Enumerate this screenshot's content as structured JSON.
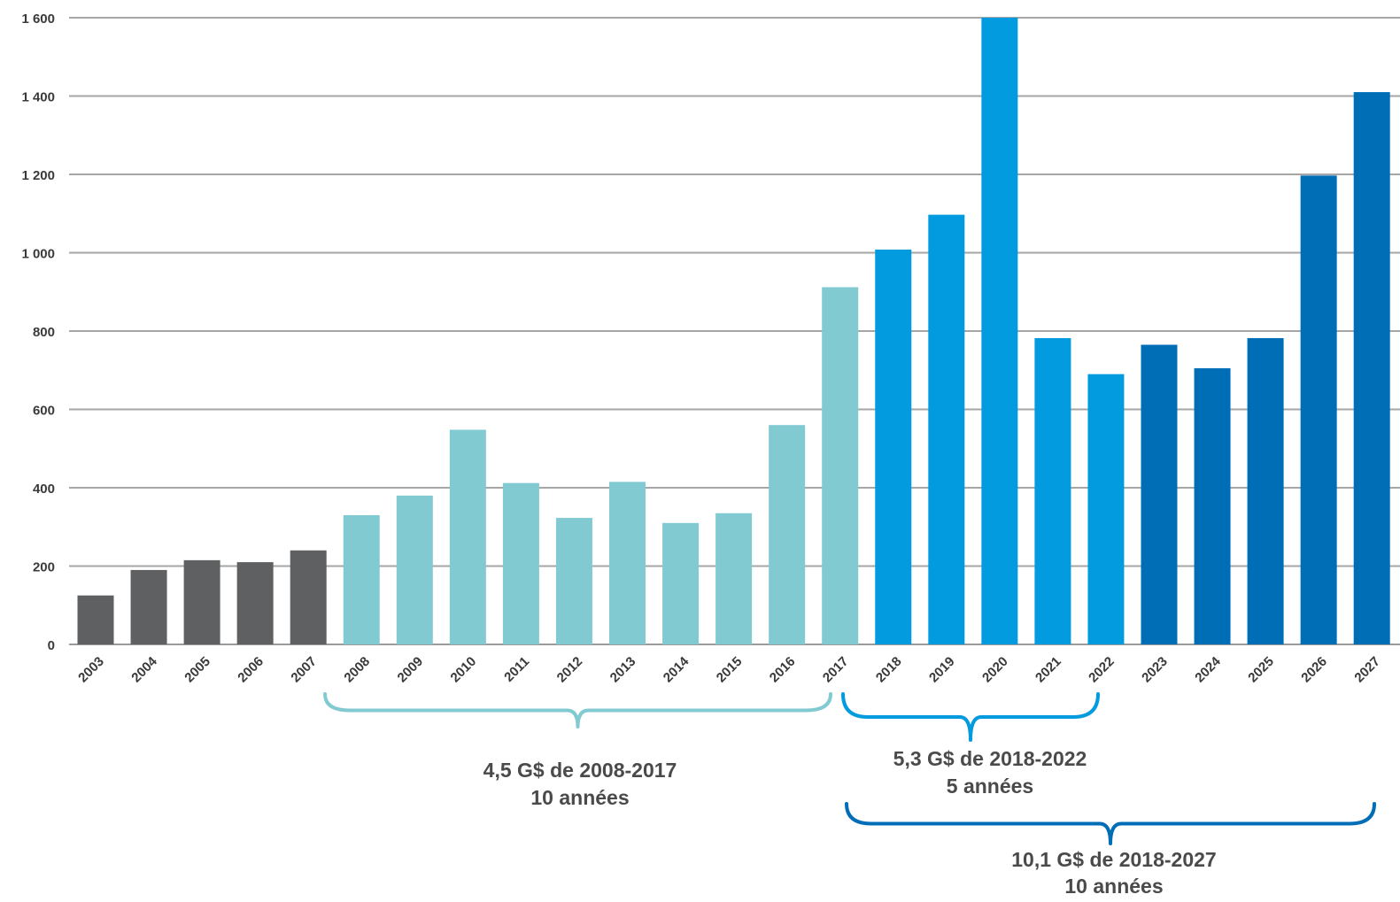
{
  "chart_data": {
    "type": "bar",
    "title": "",
    "xlabel": "",
    "ylabel": "",
    "ylim": [
      0,
      1600
    ],
    "yticks": [
      0,
      200,
      400,
      600,
      800,
      1000,
      1200,
      1400,
      1600
    ],
    "ytick_labels": [
      "0",
      "200",
      "400",
      "600",
      "800",
      "1 000",
      "1 200",
      "1 400",
      "1 600"
    ],
    "grid": true,
    "categories": [
      "2003",
      "2004",
      "2005",
      "2006",
      "2007",
      "2008",
      "2009",
      "2010",
      "2011",
      "2012",
      "2013",
      "2014",
      "2015",
      "2016",
      "2017",
      "2018",
      "2019",
      "2020",
      "2021",
      "2022",
      "2023",
      "2024",
      "2025",
      "2026",
      "2027"
    ],
    "values": [
      125,
      190,
      215,
      210,
      240,
      330,
      380,
      548,
      412,
      323,
      415,
      310,
      335,
      560,
      912,
      1008,
      1097,
      1600,
      782,
      690,
      765,
      705,
      782,
      1197,
      1410
    ],
    "bar_colors": [
      "#5f6062",
      "#5f6062",
      "#5f6062",
      "#5f6062",
      "#5f6062",
      "#82cad2",
      "#82cad2",
      "#82cad2",
      "#82cad2",
      "#82cad2",
      "#82cad2",
      "#82cad2",
      "#82cad2",
      "#82cad2",
      "#82cad2",
      "#039be0",
      "#039be0",
      "#039be0",
      "#039be0",
      "#039be0",
      "#006db7",
      "#006db7",
      "#006db7",
      "#006db7",
      "#006db7"
    ],
    "annotations": [
      {
        "from": "2008",
        "to": "2017",
        "color": "#82cad2",
        "lines": [
          "4,5 G$ de 2008-2017",
          "10 années"
        ]
      },
      {
        "from": "2018",
        "to": "2022",
        "color": "#039be0",
        "lines": [
          "5,3 G$ de 2018-2022",
          "5 années"
        ]
      },
      {
        "from": "2018",
        "to": "2027",
        "color": "#006db7",
        "lines": [
          "10,1 G$ de 2018-2027",
          "10 années"
        ]
      }
    ]
  }
}
